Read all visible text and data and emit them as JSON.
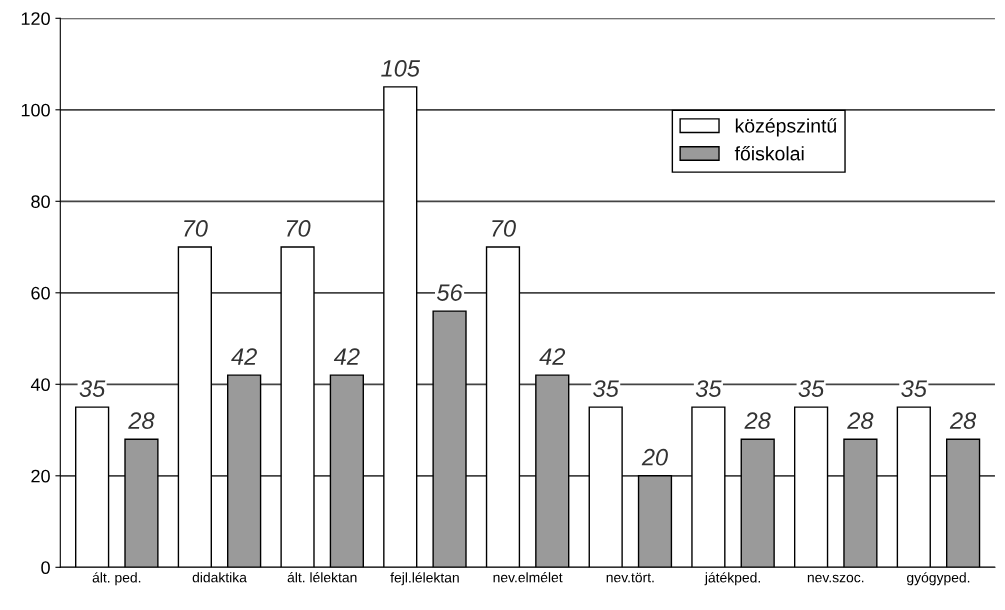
{
  "chart_data": {
    "type": "bar",
    "categories": [
      "ált. ped.",
      "didaktika",
      "ált. lélektan",
      "fejl.lélektan",
      "nev.elmélet",
      "nev.tört.",
      "játékped.",
      "nev.szoc.",
      "gyógyped."
    ],
    "series": [
      {
        "name": "középszintű",
        "color": "#ffffff",
        "values": [
          35,
          70,
          70,
          105,
          70,
          35,
          35,
          35,
          35
        ]
      },
      {
        "name": "főiskolai",
        "color": "#9a9a9a",
        "values": [
          28,
          42,
          42,
          56,
          42,
          20,
          28,
          28,
          28
        ]
      }
    ],
    "ylim": [
      0,
      120
    ],
    "yticks": [
      0,
      20,
      40,
      60,
      80,
      100,
      120
    ],
    "grid": "y",
    "legend": "top right",
    "data_labels": true
  }
}
